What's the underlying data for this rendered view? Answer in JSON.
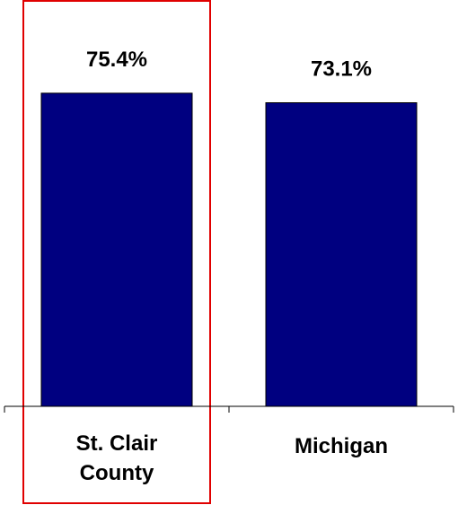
{
  "chart_data": {
    "type": "bar",
    "categories": [
      "St. Clair\nCounty",
      "Michigan"
    ],
    "values": [
      75.4,
      73.1
    ],
    "value_labels": [
      "75.4%",
      "73.1%"
    ],
    "color": "#000080",
    "highlight": 0
  }
}
